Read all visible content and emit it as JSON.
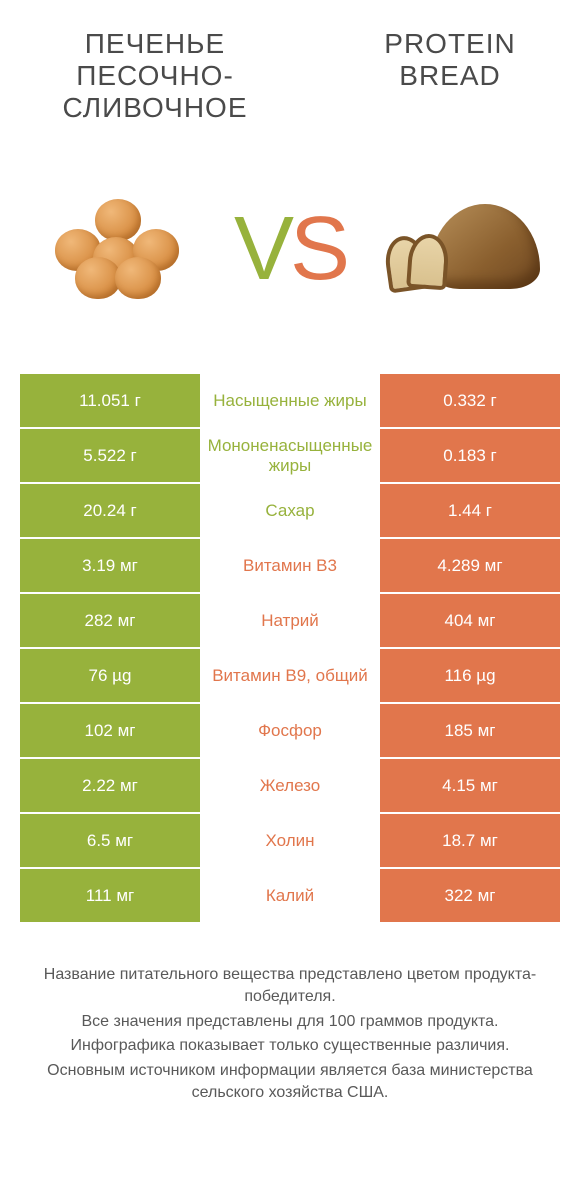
{
  "colors": {
    "green": "#97b23c",
    "orange": "#e1764c",
    "text_dark": "#4a4a4a"
  },
  "left_title": "ПЕЧЕНЬЕ ПЕСОЧНО-СЛИВОЧНОЕ",
  "right_title": "PROTEIN BREAD",
  "vs_v": "V",
  "vs_s": "S",
  "rows": [
    {
      "left": "11.051 г",
      "mid": "Насыщенные жиры",
      "right": "0.332 г",
      "winner": "left"
    },
    {
      "left": "5.522 г",
      "mid": "Мононенасыщенные жиры",
      "right": "0.183 г",
      "winner": "left"
    },
    {
      "left": "20.24 г",
      "mid": "Сахар",
      "right": "1.44 г",
      "winner": "left"
    },
    {
      "left": "3.19 мг",
      "mid": "Витамин B3",
      "right": "4.289 мг",
      "winner": "right"
    },
    {
      "left": "282 мг",
      "mid": "Натрий",
      "right": "404 мг",
      "winner": "right"
    },
    {
      "left": "76 µg",
      "mid": "Витамин B9, общий",
      "right": "116 µg",
      "winner": "right"
    },
    {
      "left": "102 мг",
      "mid": "Фосфор",
      "right": "185 мг",
      "winner": "right"
    },
    {
      "left": "2.22 мг",
      "mid": "Железо",
      "right": "4.15 мг",
      "winner": "right"
    },
    {
      "left": "6.5 мг",
      "mid": "Холин",
      "right": "18.7 мг",
      "winner": "right"
    },
    {
      "left": "111 мг",
      "mid": "Калий",
      "right": "322 мг",
      "winner": "right"
    }
  ],
  "footer": [
    "Название питательного вещества представлено цветом продукта-победителя.",
    "Все значения представлены для 100 граммов продукта.",
    "Инфографика показывает только существенные различия.",
    "Основным источником информации является база министерства сельского хозяйства США."
  ]
}
